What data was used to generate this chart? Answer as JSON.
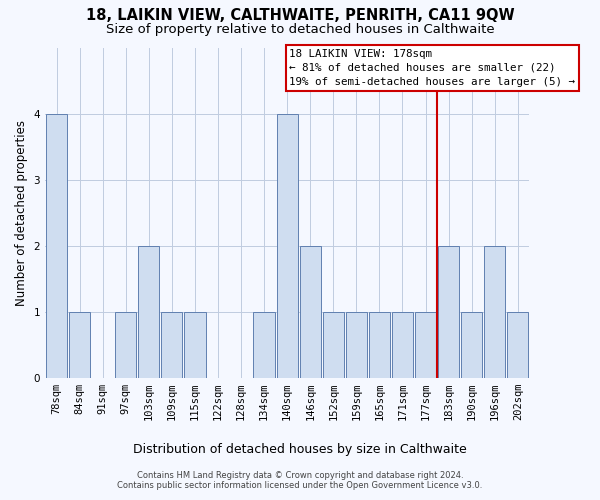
{
  "title": "18, LAIKIN VIEW, CALTHWAITE, PENRITH, CA11 9QW",
  "subtitle": "Size of property relative to detached houses in Calthwaite",
  "xlabel": "Distribution of detached houses by size in Calthwaite",
  "ylabel": "Number of detached properties",
  "categories": [
    "78sqm",
    "84sqm",
    "91sqm",
    "97sqm",
    "103sqm",
    "109sqm",
    "115sqm",
    "122sqm",
    "128sqm",
    "134sqm",
    "140sqm",
    "146sqm",
    "152sqm",
    "159sqm",
    "165sqm",
    "171sqm",
    "177sqm",
    "183sqm",
    "190sqm",
    "196sqm",
    "202sqm"
  ],
  "values": [
    4,
    1,
    0,
    1,
    2,
    1,
    1,
    0,
    0,
    1,
    4,
    2,
    1,
    1,
    1,
    1,
    1,
    2,
    1,
    2,
    1
  ],
  "bar_color": "#cfddf0",
  "bar_edge_color": "#6080b0",
  "vline_color": "#cc0000",
  "annotation_line1": "18 LAIKIN VIEW: 178sqm",
  "annotation_line2": "← 81% of detached houses are smaller (22)",
  "annotation_line3": "19% of semi-detached houses are larger (5) →",
  "ylim": [
    0,
    5
  ],
  "yticks": [
    0,
    1,
    2,
    3,
    4,
    5
  ],
  "background_color": "#f5f8ff",
  "grid_color": "#c0cce0",
  "footer": "Contains HM Land Registry data © Crown copyright and database right 2024.\nContains public sector information licensed under the Open Government Licence v3.0.",
  "title_fontsize": 10.5,
  "subtitle_fontsize": 9.5,
  "ylabel_fontsize": 8.5,
  "xlabel_fontsize": 9,
  "tick_fontsize": 7.5,
  "footer_fontsize": 6
}
